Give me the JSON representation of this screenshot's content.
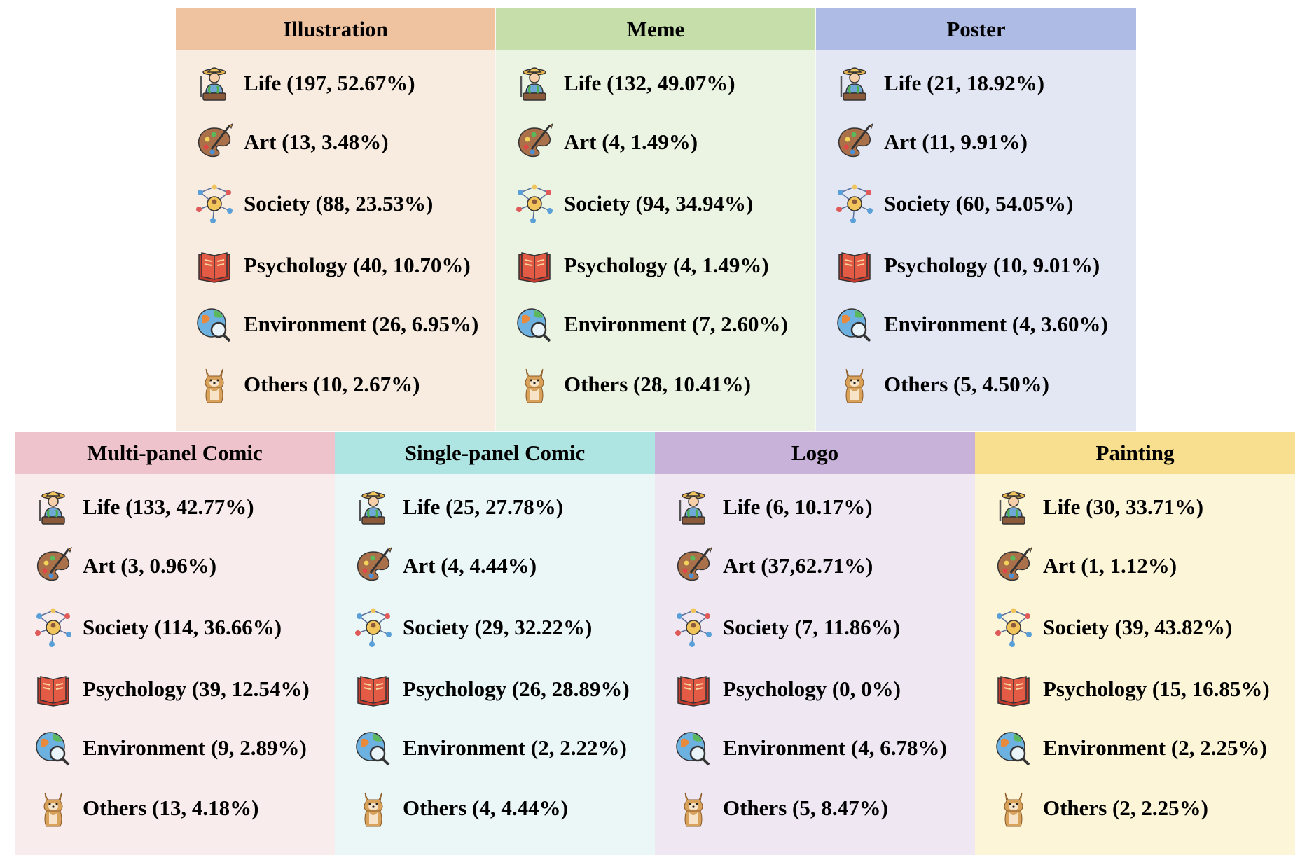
{
  "icons": {
    "Life": "farmer-icon",
    "Art": "palette-icon",
    "Society": "network-people-icon",
    "Psychology": "book-icon",
    "Environment": "globe-magnifier-icon",
    "Others": "shiba-dog-icon"
  },
  "panels_top": [
    {
      "title": "Illustration",
      "header_color": "#efc3a0",
      "body_color": "#f8ebe0",
      "items": [
        {
          "icon": "farmer-icon",
          "text": "Life (197, 52.67%)"
        },
        {
          "icon": "palette-icon",
          "text": "Art (13, 3.48%)"
        },
        {
          "icon": "network-people-icon",
          "text": "Society (88, 23.53%)"
        },
        {
          "icon": "book-icon",
          "text": "Psychology (40, 10.70%)"
        },
        {
          "icon": "globe-magnifier-icon",
          "text": "Environment (26, 6.95%)"
        },
        {
          "icon": "shiba-dog-icon",
          "text": "Others (10, 2.67%)"
        }
      ]
    },
    {
      "title": "Meme",
      "header_color": "#c6dfaa",
      "body_color": "#ebf3e2",
      "items": [
        {
          "icon": "farmer-icon",
          "text": "Life (132, 49.07%)"
        },
        {
          "icon": "palette-icon",
          "text": "Art (4, 1.49%)"
        },
        {
          "icon": "network-people-icon",
          "text": "Society (94, 34.94%)"
        },
        {
          "icon": "book-icon",
          "text": "Psychology (4, 1.49%)"
        },
        {
          "icon": "globe-magnifier-icon",
          "text": "Environment (7, 2.60%)"
        },
        {
          "icon": "shiba-dog-icon",
          "text": "Others (28, 10.41%)"
        }
      ]
    },
    {
      "title": "Poster",
      "header_color": "#aebce5",
      "body_color": "#e3e7f4",
      "items": [
        {
          "icon": "farmer-icon",
          "text": "Life (21, 18.92%)"
        },
        {
          "icon": "palette-icon",
          "text": "Art (11, 9.91%)"
        },
        {
          "icon": "network-people-icon",
          "text": "Society (60, 54.05%)"
        },
        {
          "icon": "book-icon",
          "text": "Psychology (10, 9.01%)"
        },
        {
          "icon": "globe-magnifier-icon",
          "text": "Environment (4, 3.60%)"
        },
        {
          "icon": "shiba-dog-icon",
          "text": "Others (5, 4.50%)"
        }
      ]
    }
  ],
  "panels_bottom": [
    {
      "title": "Multi-panel Comic",
      "header_color": "#eec3cb",
      "body_color": "#f9eced",
      "items": [
        {
          "icon": "farmer-icon",
          "text": "Life (133, 42.77%)"
        },
        {
          "icon": "palette-icon",
          "text": "Art (3, 0.96%)"
        },
        {
          "icon": "network-people-icon",
          "text": "Society (114, 36.66%)"
        },
        {
          "icon": "book-icon",
          "text": "Psychology (39, 12.54%)"
        },
        {
          "icon": "globe-magnifier-icon",
          "text": "Environment (9, 2.89%)"
        },
        {
          "icon": "shiba-dog-icon",
          "text": "Others (13, 4.18%)"
        }
      ]
    },
    {
      "title": "Single-panel Comic",
      "header_color": "#aee4e1",
      "body_color": "#ebf7f6",
      "items": [
        {
          "icon": "farmer-icon",
          "text": "Life (25, 27.78%)"
        },
        {
          "icon": "palette-icon",
          "text": "Art (4, 4.44%)"
        },
        {
          "icon": "network-people-icon",
          "text": "Society (29, 32.22%)"
        },
        {
          "icon": "book-icon",
          "text": "Psychology (26, 28.89%)"
        },
        {
          "icon": "globe-magnifier-icon",
          "text": "Environment (2, 2.22%)"
        },
        {
          "icon": "shiba-dog-icon",
          "text": "Others (4, 4.44%)"
        }
      ]
    },
    {
      "title": "Logo",
      "header_color": "#c8b2d9",
      "body_color": "#efe8f3",
      "items": [
        {
          "icon": "farmer-icon",
          "text": "Life (6, 10.17%)"
        },
        {
          "icon": "palette-icon",
          "text": "Art (37,62.71%)"
        },
        {
          "icon": "network-people-icon",
          "text": "Society (7, 11.86%)"
        },
        {
          "icon": "book-icon",
          "text": "Psychology (0, 0%)"
        },
        {
          "icon": "globe-magnifier-icon",
          "text": "Environment (4, 6.78%)"
        },
        {
          "icon": "shiba-dog-icon",
          "text": "Others (5, 8.47%)"
        }
      ]
    },
    {
      "title": "Painting",
      "header_color": "#f8df90",
      "body_color": "#fcf5d8",
      "items": [
        {
          "icon": "farmer-icon",
          "text": "Life (30, 33.71%)"
        },
        {
          "icon": "palette-icon",
          "text": "Art (1, 1.12%)"
        },
        {
          "icon": "network-people-icon",
          "text": "Society (39, 43.82%)"
        },
        {
          "icon": "book-icon",
          "text": "Psychology (15, 16.85%)"
        },
        {
          "icon": "globe-magnifier-icon",
          "text": "Environment (2, 2.25%)"
        },
        {
          "icon": "shiba-dog-icon",
          "text": "Others (2, 2.25%)"
        }
      ]
    }
  ]
}
